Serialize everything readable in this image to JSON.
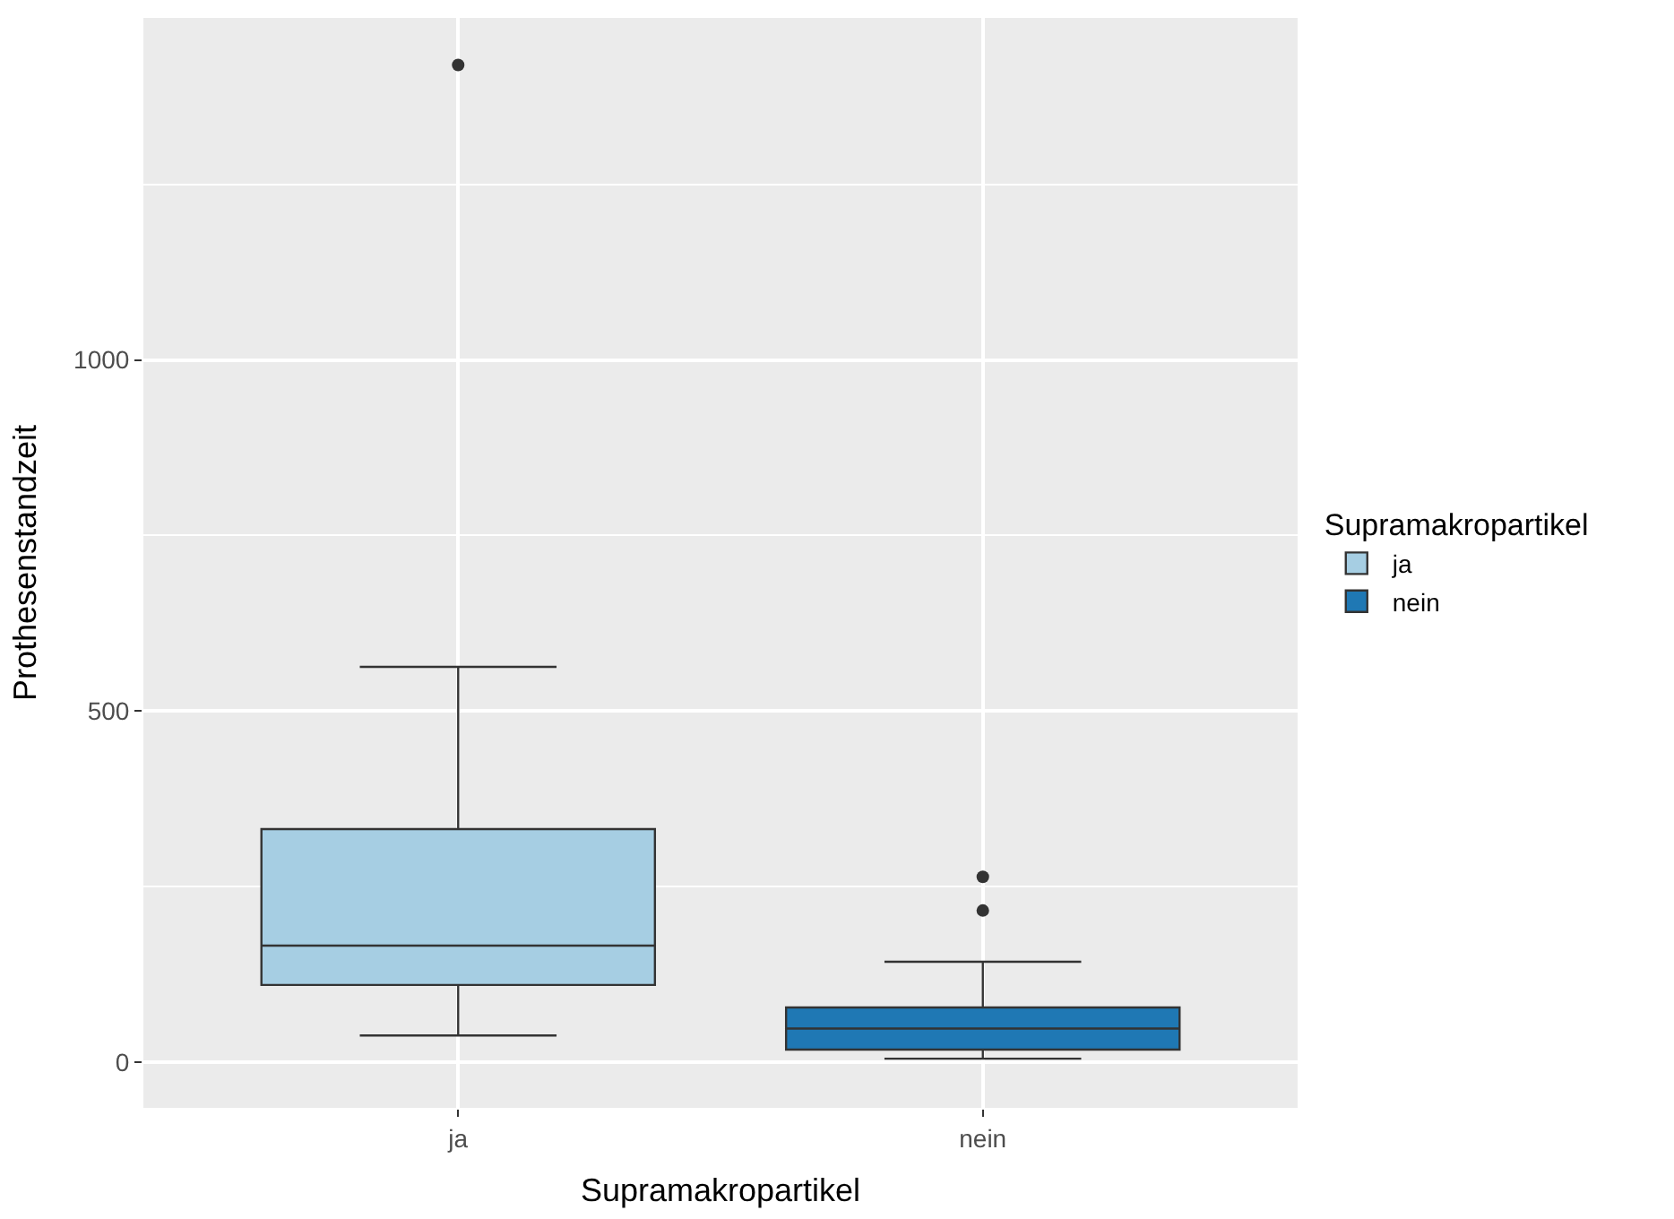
{
  "chart_data": {
    "type": "box",
    "xlabel": "Supramakropartikel",
    "ylabel": "Prothesenstandzeit",
    "legend_title": "Supramakropartikel",
    "categories": [
      "ja",
      "nein"
    ],
    "series": [
      {
        "name": "ja",
        "color": "#a6cee3",
        "boxes": [
          {
            "low": 38,
            "q1": 110,
            "median": 166,
            "q3": 332,
            "high": 563,
            "outliers": [
              1420
            ]
          },
          null
        ]
      },
      {
        "name": "nein",
        "color": "#1f78b4",
        "boxes": [
          null,
          {
            "low": 5,
            "q1": 18,
            "median": 48,
            "q3": 78,
            "high": 143,
            "outliers": [
              216,
              264
            ]
          }
        ]
      }
    ],
    "ylim": [
      -65,
      1487
    ],
    "yticks": [
      0,
      500,
      1000
    ],
    "grid": true,
    "legend": "right"
  }
}
